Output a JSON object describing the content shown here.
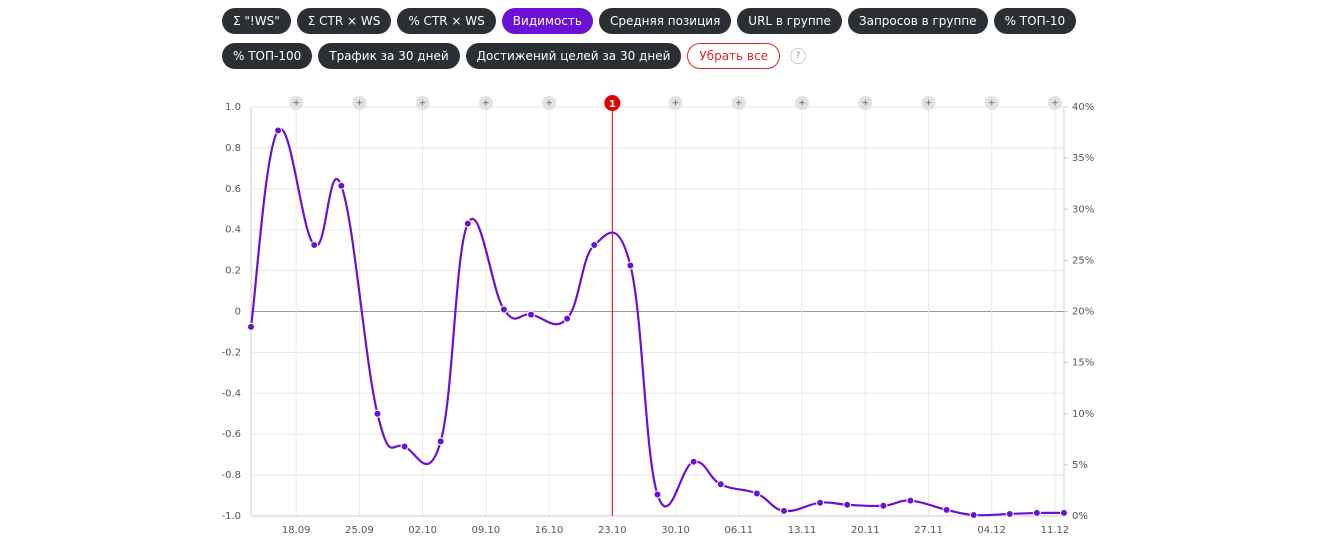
{
  "buttons": [
    {
      "label": "Σ \"!WS\"",
      "active": false
    },
    {
      "label": "Σ CTR × WS",
      "active": false
    },
    {
      "label": "% CTR × WS",
      "active": false
    },
    {
      "label": "Видимость",
      "active": true
    },
    {
      "label": "Средняя позиция",
      "active": false
    },
    {
      "label": "URL в группе",
      "active": false
    },
    {
      "label": "Запросов в группе",
      "active": false
    },
    {
      "label": "% ТОП-10",
      "active": false
    },
    {
      "label": "% ТОП-100",
      "active": false
    },
    {
      "label": "Трафик за 30 дней",
      "active": false
    },
    {
      "label": "Достижений целей за 30 дней",
      "active": false
    }
  ],
  "clear_button": "Убрать все",
  "help": "?",
  "chart_data": {
    "type": "line",
    "x": [
      "13.09",
      "16.09",
      "20.09",
      "23.09",
      "27.09",
      "30.09",
      "04.10",
      "07.10",
      "11.10",
      "14.10",
      "18.10",
      "21.10",
      "25.10",
      "28.10",
      "01.11",
      "04.11",
      "08.11",
      "11.11",
      "15.11",
      "18.11",
      "22.11",
      "25.11",
      "29.11",
      "02.12",
      "06.12",
      "09.12",
      "12.12"
    ],
    "xlim": [
      "13.09",
      "12.12"
    ],
    "xticks": [
      "18.09",
      "25.09",
      "02.10",
      "09.10",
      "16.10",
      "23.10",
      "30.10",
      "06.11",
      "13.11",
      "20.11",
      "27.11",
      "04.12",
      "11.12"
    ],
    "series": [
      {
        "name": "Видимость",
        "color": "#6a11d4",
        "axis": "y2",
        "values": [
          18.5,
          37.7,
          26.5,
          32.3,
          10.0,
          6.8,
          7.3,
          28.6,
          20.2,
          19.7,
          19.3,
          26.5,
          24.5,
          2.1,
          5.3,
          3.1,
          2.2,
          0.5,
          1.3,
          1.1,
          1.0,
          1.5,
          0.6,
          0.1,
          0.2,
          0.3,
          0.3
        ]
      }
    ],
    "ylim": [
      -1,
      1
    ],
    "yticks": [
      {
        "value": 1,
        "label": "1.0"
      },
      0.8,
      0.6,
      0.4,
      0.2,
      0,
      -0.2,
      -0.4,
      -0.6,
      -0.8,
      {
        "value": -1,
        "label": "-1.0"
      }
    ],
    "y2lim": [
      0,
      40
    ],
    "y2ticks": [
      {
        "value": 40,
        "label": "40%"
      },
      {
        "value": 35,
        "label": "35%"
      },
      {
        "value": 30,
        "label": "30%"
      },
      {
        "value": 25,
        "label": "25%"
      },
      {
        "value": 20,
        "label": "20%"
      },
      {
        "value": 15,
        "label": "15%"
      },
      {
        "value": 10,
        "label": "10%"
      },
      {
        "value": 5,
        "label": "5%"
      },
      {
        "value": 0,
        "label": "0%"
      }
    ],
    "grid": true,
    "annotations": [
      {
        "x": "23.10",
        "label": "1",
        "color": "#e00000"
      }
    ]
  }
}
